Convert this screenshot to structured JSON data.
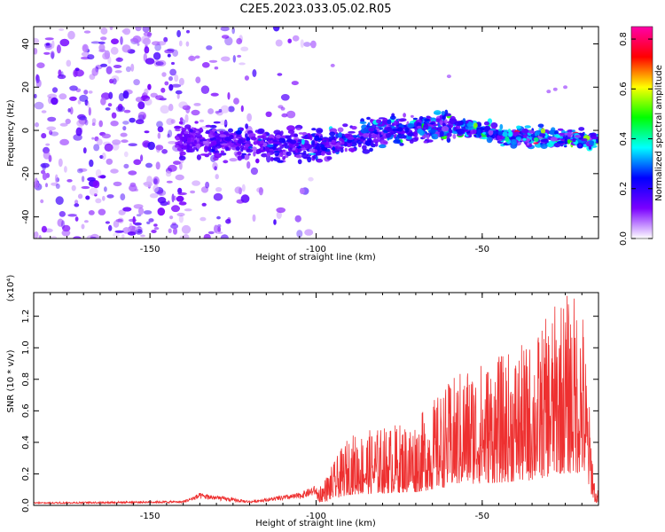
{
  "title": "C2E5.2023.033.05.02.R05",
  "chart_data": [
    {
      "type": "heatmap",
      "xlabel": "Height of straight line (km)",
      "ylabel": "Frequency (Hz)",
      "xlim": [
        -185,
        -15
      ],
      "ylim": [
        -50,
        48
      ],
      "xticks": [
        -150,
        -100,
        -50
      ],
      "yticks": [
        -40,
        -20,
        0,
        20,
        40
      ],
      "colorbar": {
        "label": "Normalized spectral amplitude",
        "range": [
          0.0,
          0.85
        ],
        "ticks": [
          0.0,
          0.2,
          0.4,
          0.6,
          0.8
        ],
        "colormap": [
          "#ffffff",
          "#7a00ff",
          "#0000ff",
          "#00ffff",
          "#00ff00",
          "#ffff00",
          "#ff0000",
          "#ff00aa"
        ]
      },
      "band_center": [
        {
          "x": -140,
          "y": -4
        },
        {
          "x": -120,
          "y": -6
        },
        {
          "x": -100,
          "y": -7
        },
        {
          "x": -80,
          "y": 0
        },
        {
          "x": -60,
          "y": 2
        },
        {
          "x": -40,
          "y": -3
        },
        {
          "x": -16,
          "y": -4
        }
      ],
      "grid": false
    },
    {
      "type": "line",
      "xlabel": "Height of straight line (km)",
      "ylabel": "SNR (10 * v/v)",
      "y_multiplier": "(x10⁴)",
      "xlim": [
        -185,
        -15
      ],
      "ylim": [
        0,
        1.35
      ],
      "xticks": [
        -150,
        -100,
        -50
      ],
      "yticks": [
        0.0,
        0.2,
        0.4,
        0.6,
        0.8,
        1.0,
        1.2
      ],
      "color": "#ee3030",
      "envelope": [
        {
          "x": -185,
          "y": 0.02
        },
        {
          "x": -140,
          "y": 0.03
        },
        {
          "x": -135,
          "y": 0.08
        },
        {
          "x": -120,
          "y": 0.03
        },
        {
          "x": -105,
          "y": 0.08
        },
        {
          "x": -98,
          "y": 0.15
        },
        {
          "x": -90,
          "y": 0.45
        },
        {
          "x": -80,
          "y": 0.5
        },
        {
          "x": -70,
          "y": 0.55
        },
        {
          "x": -55,
          "y": 0.9
        },
        {
          "x": -45,
          "y": 0.95
        },
        {
          "x": -35,
          "y": 1.05
        },
        {
          "x": -26,
          "y": 1.35
        },
        {
          "x": -20,
          "y": 1.35
        },
        {
          "x": -16,
          "y": 0.1
        }
      ],
      "grid": false
    }
  ]
}
